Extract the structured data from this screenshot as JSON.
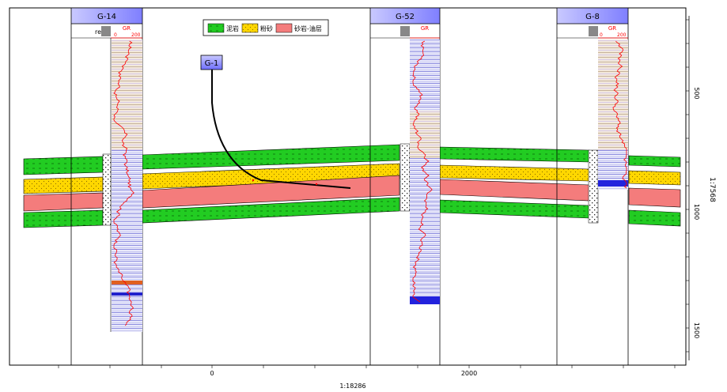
{
  "wells": [
    {
      "name": "G-14",
      "track": "re",
      "curve": "GR",
      "min": "0",
      "max": "200"
    },
    {
      "name": "G-52",
      "track": "",
      "curve": "GR",
      "min": "",
      "max": ""
    },
    {
      "name": "G-8",
      "track": "",
      "curve": "GR",
      "min": "0",
      "max": "200"
    }
  ],
  "planned_well": {
    "name": "G-1"
  },
  "legend": [
    {
      "label": "泥岩",
      "color": "#22cc22"
    },
    {
      "label": "粉砂",
      "color": "#ffd700"
    },
    {
      "label": "砂岩-油层",
      "color": "#f47c7c"
    }
  ],
  "x_axis": {
    "ticks": [
      "0",
      "2000"
    ],
    "scale": "1:18286"
  },
  "depth_axis": {
    "ticks": [
      "500",
      "1000",
      "1500"
    ],
    "ratio": "1:7568"
  },
  "colors": {
    "header": "#b8b8ff",
    "gr_curve": "#ff0000",
    "frame": "#000000"
  }
}
